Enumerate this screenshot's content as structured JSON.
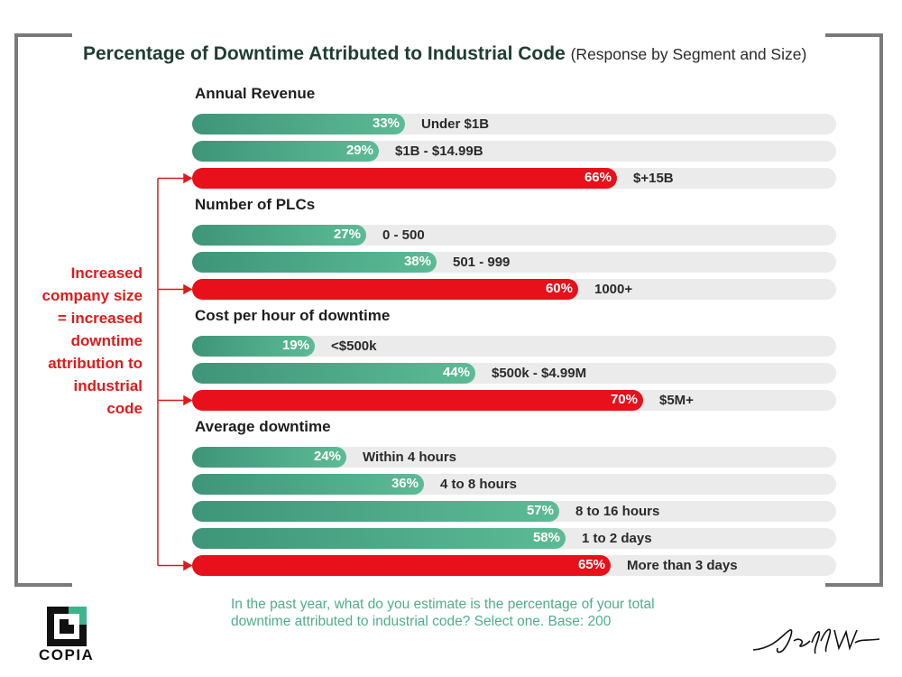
{
  "title": "Percentage of Downtime Attributed to Industrial Code",
  "subtitle": "(Response by Segment and Size)",
  "side_note": "Increased company size = increased downtime attribution to industrial code",
  "footnote_line1": "In the past year, what do you estimate is the percentage of your total",
  "footnote_line2": "downtime attributed to industrial code? Select one. Base: 200",
  "logo_text": "COPIA",
  "colors": {
    "green_start": "#3e9579",
    "green_end": "#5cbb96",
    "red": "#e8101a",
    "track": "#ebebeb",
    "note": "#e01a1a"
  },
  "chart_data": {
    "type": "bar",
    "orientation": "horizontal",
    "scale_max": 100,
    "segments": [
      {
        "title": "Annual Revenue",
        "bars": [
          {
            "label": "Under $1B",
            "value": 33,
            "display": "33%",
            "highlight": false
          },
          {
            "label": "$1B - $14.99B",
            "value": 29,
            "display": "29%",
            "highlight": false
          },
          {
            "label": "$+15B",
            "value": 66,
            "display": "66%",
            "highlight": true
          }
        ]
      },
      {
        "title": "Number of PLCs",
        "bars": [
          {
            "label": "0 - 500",
            "value": 27,
            "display": "27%",
            "highlight": false
          },
          {
            "label": "501 - 999",
            "value": 38,
            "display": "38%",
            "highlight": false
          },
          {
            "label": "1000+",
            "value": 60,
            "display": "60%",
            "highlight": true
          }
        ]
      },
      {
        "title": "Cost per hour of downtime",
        "bars": [
          {
            "label": "<$500k",
            "value": 19,
            "display": "19%",
            "highlight": false
          },
          {
            "label": "$500k - $4.99M",
            "value": 44,
            "display": "44%",
            "highlight": false
          },
          {
            "label": "$5M+",
            "value": 70,
            "display": "70%",
            "highlight": true
          }
        ]
      },
      {
        "title": "Average downtime",
        "bars": [
          {
            "label": "Within 4 hours",
            "value": 24,
            "display": "24%",
            "highlight": false
          },
          {
            "label": "4 to 8 hours",
            "value": 36,
            "display": "36%",
            "highlight": false
          },
          {
            "label": "8 to 16 hours",
            "value": 57,
            "display": "57%",
            "highlight": false
          },
          {
            "label": "1 to 2 days",
            "value": 58,
            "display": "58%",
            "highlight": false
          },
          {
            "label": "More than 3 days",
            "value": 65,
            "display": "65%",
            "highlight": true
          }
        ]
      }
    ]
  }
}
